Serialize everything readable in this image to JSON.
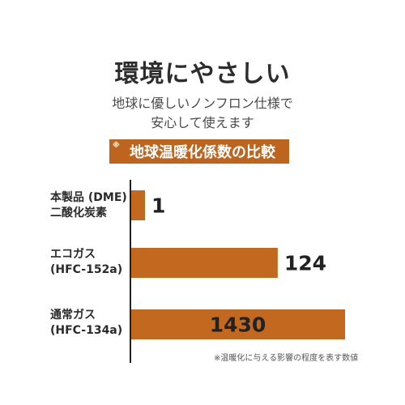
{
  "title": "環境にやさしい",
  "subtitle_line1": "地球に優しいノンフロン仕様で",
  "subtitle_line2": "安心して使えます",
  "banner_mark": "※",
  "banner_text": "地球温暖化係数の比較",
  "footnote": "※温暖化に与える影響の程度を表す数値",
  "colors": {
    "bar": "#c3691f",
    "axis": "#222222",
    "banner": "#bd641f"
  },
  "chart_data": {
    "type": "bar",
    "orientation": "horizontal",
    "scale": "log",
    "categories": [
      {
        "line1": "本製品 (DME)",
        "line2": "二酸化炭素"
      },
      {
        "line1": "エコガス",
        "line2": "(HFC-152a)"
      },
      {
        "line1": "通常ガス",
        "line2": "(HFC-134a)"
      }
    ],
    "values": [
      1,
      124,
      1430
    ],
    "value_labels": [
      "1",
      "124",
      "1430"
    ]
  }
}
